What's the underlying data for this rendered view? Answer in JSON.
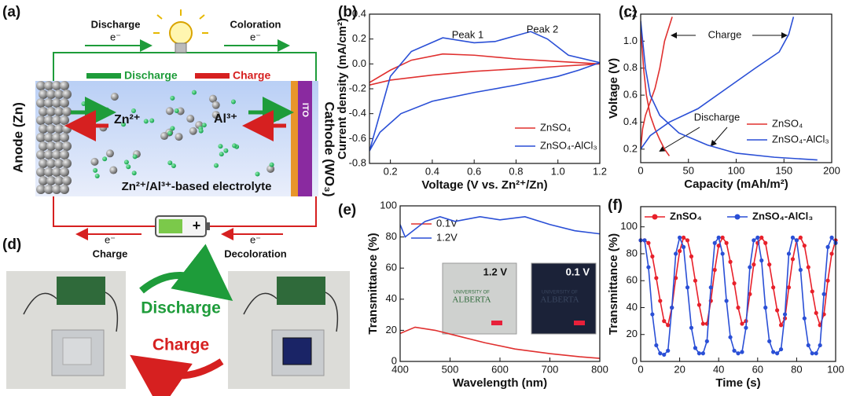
{
  "diagram": {
    "panel_label": "(a)",
    "top_left_label": "Discharge",
    "top_left_electron": "e⁻",
    "top_right_label": "Coloration",
    "top_right_electron": "e⁻",
    "legend_discharge": "Discharge",
    "legend_charge": "Charge",
    "ion_zn": "Zn²⁺",
    "ion_al": "Al³⁺",
    "anode": "Anode (Zn)",
    "ito": "ITO",
    "cathode": "Cathode (WO₃)",
    "electrolyte": "Zn²⁺/Al³⁺-based electrolyte",
    "bottom_left_electron": "e⁻",
    "bottom_left_label": "Charge",
    "bottom_right_electron": "e⁻",
    "bottom_right_label": "Decoloration"
  },
  "photos": {
    "panel_label": "(d)",
    "discharge": "Discharge",
    "charge": "Charge"
  },
  "chart_data": [
    {
      "type": "line",
      "panel_label": "(b)",
      "xlabel": "Voltage (V vs. Zn²⁺/Zn)",
      "ylabel": "Current density (mA/cm²)",
      "xlim": [
        0.1,
        1.2
      ],
      "xticks": [
        0.2,
        0.4,
        0.6,
        0.8,
        {
          "value": 1.0,
          "label": "1.0"
        },
        1.2
      ],
      "ylim": [
        -0.8,
        0.4
      ],
      "yticks": [
        -0.8,
        -0.6,
        -0.4,
        -0.2,
        {
          "value": 0,
          "label": "0.0"
        },
        0.2,
        0.4
      ],
      "annotations": [
        "Peak 1",
        "Peak 2"
      ],
      "series": [
        {
          "name": "ZnSO₄",
          "color": "#e0302f",
          "x": [
            0.1,
            0.2,
            0.3,
            0.45,
            0.6,
            0.8,
            1.0,
            1.2,
            1.0,
            0.8,
            0.6,
            0.4,
            0.2,
            0.1
          ],
          "values": [
            -0.15,
            -0.05,
            0.03,
            0.08,
            0.07,
            0.04,
            0.02,
            0.0,
            -0.02,
            -0.04,
            -0.06,
            -0.09,
            -0.13,
            -0.17
          ]
        },
        {
          "name": "ZnSO₄-AlCl₃",
          "color": "#2a4fd6",
          "x": [
            0.1,
            0.2,
            0.3,
            0.45,
            0.6,
            0.7,
            0.87,
            0.95,
            1.05,
            1.2,
            1.1,
            1.0,
            0.8,
            0.6,
            0.4,
            0.25,
            0.15,
            0.1
          ],
          "values": [
            -0.7,
            -0.1,
            0.1,
            0.21,
            0.17,
            0.18,
            0.26,
            0.2,
            0.07,
            0.01,
            -0.05,
            -0.1,
            -0.17,
            -0.23,
            -0.3,
            -0.4,
            -0.55,
            -0.7
          ]
        }
      ]
    },
    {
      "type": "line",
      "panel_label": "(c)",
      "xlabel": "Capacity (mAh/m²)",
      "ylabel": "Voltage (V)",
      "xlim": [
        0,
        200
      ],
      "xticks": [
        0,
        50,
        100,
        150,
        200
      ],
      "ylim": [
        0.1,
        1.2
      ],
      "yticks": [
        0.2,
        0.4,
        0.6,
        0.8,
        {
          "value": 1.0,
          "label": "1.0"
        },
        1.2
      ],
      "annotations": [
        "Charge",
        "Discharge"
      ],
      "series": [
        {
          "name": "ZnSO₄",
          "color": "#e0302f",
          "x": [
            0,
            2,
            5,
            10,
            15,
            20,
            25,
            33
          ],
          "values": [
            0.2,
            0.35,
            0.45,
            0.55,
            0.65,
            0.8,
            1.0,
            1.18
          ]
        },
        {
          "color": "#e0302f",
          "x": [
            0,
            3,
            6,
            10,
            15,
            20,
            25,
            30
          ],
          "values": [
            1.1,
            0.8,
            0.6,
            0.45,
            0.35,
            0.27,
            0.2,
            0.15
          ]
        },
        {
          "name": "ZnSO₄-AlCl₃",
          "color": "#2a4fd6",
          "x": [
            0,
            10,
            30,
            60,
            90,
            120,
            145,
            155,
            160
          ],
          "values": [
            0.2,
            0.3,
            0.4,
            0.5,
            0.65,
            0.8,
            0.92,
            1.05,
            1.18
          ]
        },
        {
          "color": "#2a4fd6",
          "x": [
            0,
            5,
            10,
            20,
            40,
            70,
            100,
            140,
            185
          ],
          "values": [
            1.15,
            0.8,
            0.6,
            0.45,
            0.32,
            0.23,
            0.17,
            0.14,
            0.12
          ]
        }
      ]
    },
    {
      "type": "line",
      "panel_label": "(e)",
      "xlabel": "Wavelength (nm)",
      "ylabel": "Transmittance (%)",
      "xlim": [
        400,
        800
      ],
      "xticks": [
        400,
        500,
        600,
        700,
        800
      ],
      "ylim": [
        0,
        100
      ],
      "yticks": [
        0,
        20,
        40,
        60,
        80,
        100
      ],
      "insets": [
        {
          "label": "1.2 V",
          "logo_top": "UNIVERSITY OF",
          "logo_bottom": "ALBERTA"
        },
        {
          "label": "0.1 V",
          "logo_top": "UNIVERSITY OF",
          "logo_bottom": "ALBERTA"
        }
      ],
      "series": [
        {
          "name": "0.1V",
          "color": "#e0302f",
          "x": [
            400,
            430,
            470,
            520,
            570,
            630,
            700,
            760,
            800
          ],
          "values": [
            18,
            22,
            20,
            16,
            12,
            8,
            5,
            3,
            2
          ]
        },
        {
          "name": "1.2V",
          "color": "#2a4fd6",
          "x": [
            400,
            410,
            450,
            480,
            510,
            560,
            600,
            650,
            700,
            750,
            800
          ],
          "values": [
            88,
            80,
            90,
            93,
            90,
            93,
            91,
            93,
            88,
            84,
            82
          ]
        }
      ]
    },
    {
      "type": "line",
      "panel_label": "(f)",
      "markers": true,
      "xlabel": "Time (s)",
      "ylabel": "Transmittance (%)",
      "xlim": [
        0,
        100
      ],
      "xticks": [
        0,
        20,
        40,
        60,
        80,
        100
      ],
      "ylim": [
        0,
        115
      ],
      "yticks": [
        0,
        20,
        40,
        60,
        80,
        100
      ],
      "x": [
        0,
        2,
        4,
        6,
        8,
        10,
        12,
        14,
        16,
        18,
        20,
        22,
        24,
        26,
        28,
        30,
        32,
        34,
        36,
        38,
        40,
        42,
        44,
        46,
        48,
        50,
        52,
        54,
        56,
        58,
        60,
        62,
        64,
        66,
        68,
        70,
        72,
        74,
        76,
        78,
        80,
        82,
        84,
        86,
        88,
        90,
        92,
        94,
        96,
        98,
        100
      ],
      "series": [
        {
          "name": "ZnSO₄",
          "color": "#e8202a",
          "values": [
            90,
            90,
            88,
            78,
            62,
            45,
            30,
            27,
            40,
            62,
            82,
            92,
            90,
            78,
            60,
            42,
            28,
            28,
            45,
            68,
            86,
            92,
            88,
            74,
            58,
            40,
            28,
            30,
            50,
            72,
            88,
            92,
            88,
            72,
            55,
            38,
            27,
            32,
            55,
            76,
            90,
            92,
            86,
            70,
            52,
            36,
            27,
            35,
            60,
            80,
            90
          ]
        },
        {
          "name": "ZnSO₄-AlCl₃",
          "color": "#2a4fd6",
          "values": [
            90,
            90,
            70,
            35,
            12,
            6,
            5,
            8,
            40,
            80,
            92,
            85,
            55,
            25,
            10,
            6,
            6,
            15,
            55,
            88,
            92,
            80,
            45,
            18,
            8,
            6,
            7,
            25,
            70,
            90,
            92,
            75,
            40,
            15,
            7,
            6,
            9,
            35,
            80,
            92,
            90,
            68,
            32,
            12,
            6,
            6,
            12,
            50,
            85,
            92,
            88
          ]
        }
      ]
    }
  ]
}
